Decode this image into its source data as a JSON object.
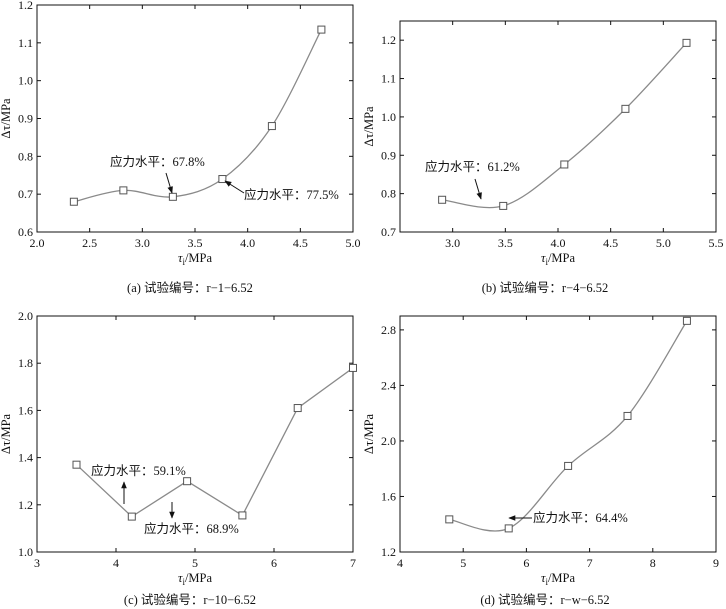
{
  "chart_data": [
    {
      "type": "line",
      "caption": "(a)  试验编号：r−1−6.52",
      "xlabel": "τ",
      "xlabel_sub": "i",
      "xlabel_unit": "/MPa",
      "ylabel": "Δτ/MPa",
      "xlim": [
        2.0,
        5.0
      ],
      "ylim": [
        0.6,
        1.2
      ],
      "xticks": [
        "2.0",
        "2.5",
        "3.0",
        "3.5",
        "4.0",
        "4.5",
        "5.0"
      ],
      "yticks": [
        "0.6",
        "0.7",
        "0.8",
        "0.9",
        "1.0",
        "1.1",
        "1.2"
      ],
      "smooth": true,
      "x": [
        2.35,
        2.82,
        3.29,
        3.76,
        4.23,
        4.7
      ],
      "y": [
        0.68,
        0.71,
        0.693,
        0.74,
        0.88,
        1.135
      ],
      "annotations": [
        {
          "text": "应力水平：67.8%",
          "point": 2
        },
        {
          "text": "应力水平：77.5%",
          "point": 3
        }
      ]
    },
    {
      "type": "line",
      "caption": "(b)  试验编号：r−4−6.52",
      "xlabel": "τ",
      "xlabel_sub": "i",
      "xlabel_unit": "/MPa",
      "ylabel": "Δτ/MPa",
      "xlim": [
        2.5,
        5.5
      ],
      "ylim": [
        0.7,
        1.25
      ],
      "xticks": [
        "3.0",
        "3.5",
        "4.0",
        "4.5",
        "5.0",
        "5.5"
      ],
      "yticks": [
        "0.7",
        "0.8",
        "0.9",
        "1.0",
        "1.1",
        "1.2"
      ],
      "smooth": true,
      "x": [
        2.9,
        3.48,
        4.06,
        4.64,
        5.22
      ],
      "y": [
        0.784,
        0.768,
        0.876,
        1.021,
        1.193
      ],
      "annotations": [
        {
          "text": "应力水平：61.2%",
          "point": 1
        }
      ]
    },
    {
      "type": "line",
      "caption": "(c)  试验编号：r−10−6.52",
      "xlabel": "τ",
      "xlabel_sub": "i",
      "xlabel_unit": "/MPa",
      "ylabel": "Δτ/MPa",
      "xlim": [
        3,
        7
      ],
      "ylim": [
        1.0,
        2.0
      ],
      "xticks": [
        "3",
        "4",
        "5",
        "6",
        "7"
      ],
      "yticks": [
        "1.0",
        "1.2",
        "1.4",
        "1.6",
        "1.8",
        "2.0"
      ],
      "smooth": false,
      "x": [
        3.5,
        4.2,
        4.9,
        5.6,
        6.3,
        7.0
      ],
      "y": [
        1.37,
        1.15,
        1.3,
        1.155,
        1.61,
        1.78
      ],
      "annotations": [
        {
          "text": "应力水平：59.1%",
          "point": 1
        },
        {
          "text": "应力水平：68.9%",
          "point": 2
        }
      ]
    },
    {
      "type": "line",
      "caption": "(d)  试验编号：r−w−6.52",
      "xlabel": "τ",
      "xlabel_sub": "i",
      "xlabel_unit": "/MPa",
      "ylabel": "Δτ/MPa",
      "xlim": [
        4,
        9
      ],
      "ylim": [
        1.2,
        2.9
      ],
      "xticks": [
        "4",
        "5",
        "6",
        "7",
        "8",
        "9"
      ],
      "yticks": [
        "1.2",
        "1.6",
        "2.0",
        "2.4",
        "2.8"
      ],
      "smooth": true,
      "x": [
        4.78,
        5.72,
        6.66,
        7.6,
        8.54
      ],
      "y": [
        1.435,
        1.37,
        1.82,
        2.18,
        2.865
      ],
      "annotations": [
        {
          "text": "应力水平：64.4%",
          "point": 1
        }
      ]
    }
  ]
}
